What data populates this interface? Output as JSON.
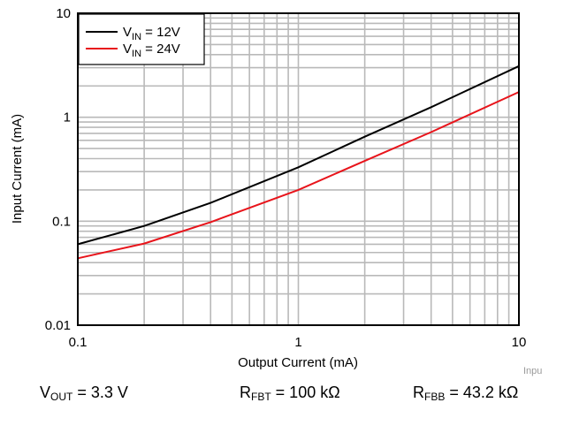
{
  "chart_data": {
    "type": "line",
    "xscale": "log",
    "yscale": "log",
    "xlim": [
      0.1,
      10
    ],
    "ylim": [
      0.01,
      10
    ],
    "xlabel": "Output Current (mA)",
    "ylabel": "Input Current (mA)",
    "xticks": [
      "0.1",
      "1",
      "10"
    ],
    "yticks": [
      "0.01",
      "0.1",
      "1",
      "10"
    ],
    "grid": true,
    "legend_position": "top-left",
    "series": [
      {
        "name_main": "V",
        "name_sub": "IN",
        "name_rest": " = 12V",
        "color": "#000000",
        "x": [
          0.1,
          0.2,
          0.4,
          1,
          2,
          4,
          10
        ],
        "y": [
          0.06,
          0.09,
          0.15,
          0.33,
          0.65,
          1.25,
          3.1
        ]
      },
      {
        "name_main": "V",
        "name_sub": "IN",
        "name_rest": " = 24V",
        "color": "#e8141b",
        "x": [
          0.1,
          0.2,
          0.4,
          1,
          2,
          4,
          10
        ],
        "y": [
          0.044,
          0.061,
          0.098,
          0.2,
          0.38,
          0.72,
          1.75
        ]
      }
    ]
  },
  "watermark": "Inpu",
  "conditions": [
    {
      "main": "V",
      "sub": "OUT",
      "rest": " = 3.3 V"
    },
    {
      "main": "R",
      "sub": "FBT",
      "rest": " = 100 kΩ"
    },
    {
      "main": "R",
      "sub": "FBB",
      "rest": " = 43.2 kΩ"
    }
  ]
}
